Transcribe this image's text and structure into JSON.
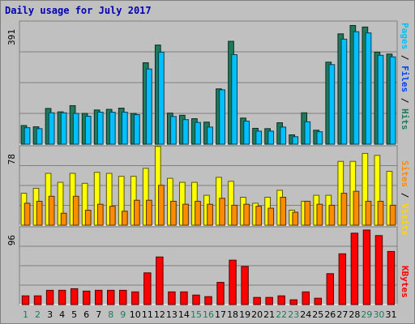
{
  "chart_data": [
    {
      "type": "bar",
      "title": "Daily usage for July 2017",
      "categories": [
        "1",
        "2",
        "3",
        "4",
        "5",
        "6",
        "7",
        "8",
        "9",
        "10",
        "11",
        "12",
        "13",
        "14",
        "15",
        "16",
        "17",
        "18",
        "19",
        "20",
        "21",
        "22",
        "23",
        "24",
        "25",
        "26",
        "27",
        "28",
        "29",
        "30",
        "31"
      ],
      "weekend_days": [
        "1",
        "2",
        "8",
        "9",
        "15",
        "16",
        "22",
        "23",
        "29",
        "30"
      ],
      "ymax_label": "391",
      "legend": [
        "Pages",
        "Files",
        "Hits"
      ],
      "series": [
        {
          "name": "Hits",
          "color": "#1f7a5c",
          "values": [
            60,
            56,
            115,
            104,
            124,
            99,
            110,
            112,
            116,
            99,
            262,
            319,
            100,
            93,
            82,
            71,
            178,
            331,
            84,
            51,
            50,
            69,
            30,
            101,
            45,
            264,
            355,
            382,
            377,
            296,
            290
          ]
        },
        {
          "name": "Files",
          "color": "#00c0ff",
          "values": [
            53,
            50,
            101,
            101,
            99,
            90,
            103,
            103,
            103,
            95,
            242,
            296,
            89,
            79,
            70,
            55,
            175,
            288,
            74,
            42,
            42,
            55,
            24,
            72,
            40,
            256,
            338,
            362,
            358,
            286,
            281
          ]
        }
      ]
    },
    {
      "type": "bar",
      "ymax_label": "78",
      "legend": [
        "Sites",
        "Visits"
      ],
      "series": [
        {
          "name": "Visits",
          "color": "#ffff00",
          "values": [
            32,
            37,
            52,
            43,
            52,
            42,
            53,
            52,
            49,
            49,
            57,
            79,
            47,
            43,
            43,
            30,
            48,
            44,
            28,
            22,
            28,
            35,
            15,
            24,
            30,
            30,
            64,
            64,
            72,
            70,
            54
          ]
        },
        {
          "name": "Sites",
          "color": "#ff8c00",
          "values": [
            22,
            24,
            29,
            12,
            29,
            15,
            21,
            19,
            14,
            25,
            25,
            40,
            24,
            21,
            24,
            21,
            27,
            20,
            21,
            19,
            17,
            28,
            13,
            24,
            21,
            20,
            32,
            34,
            24,
            24,
            20
          ]
        }
      ]
    },
    {
      "type": "bar",
      "ymax_label": "96",
      "legend": [
        "KBytes"
      ],
      "series": [
        {
          "name": "KBytes",
          "color": "#ff0000",
          "values": [
            11,
            11,
            18,
            18,
            20,
            17,
            18,
            18,
            18,
            16,
            40,
            60,
            16,
            16,
            12,
            10,
            28,
            56,
            48,
            9,
            9,
            11,
            6,
            16,
            8,
            39,
            64,
            90,
            94,
            87,
            67
          ]
        }
      ]
    }
  ],
  "colors": {
    "background": "#c0c0c0",
    "plot_bg": "#c0c0c0",
    "grid": "#808080",
    "title": "#0000b0",
    "day_weekday": "#000000",
    "day_weekend": "#1f7a5c",
    "legend_pages": "#00c0ff",
    "legend_files": "#0040ff",
    "legend_hits": "#1f7a5c",
    "legend_sites": "#ff8c00",
    "legend_visits": "#ffd700",
    "legend_kbytes": "#ff0000",
    "legend_slash": "#000000"
  }
}
